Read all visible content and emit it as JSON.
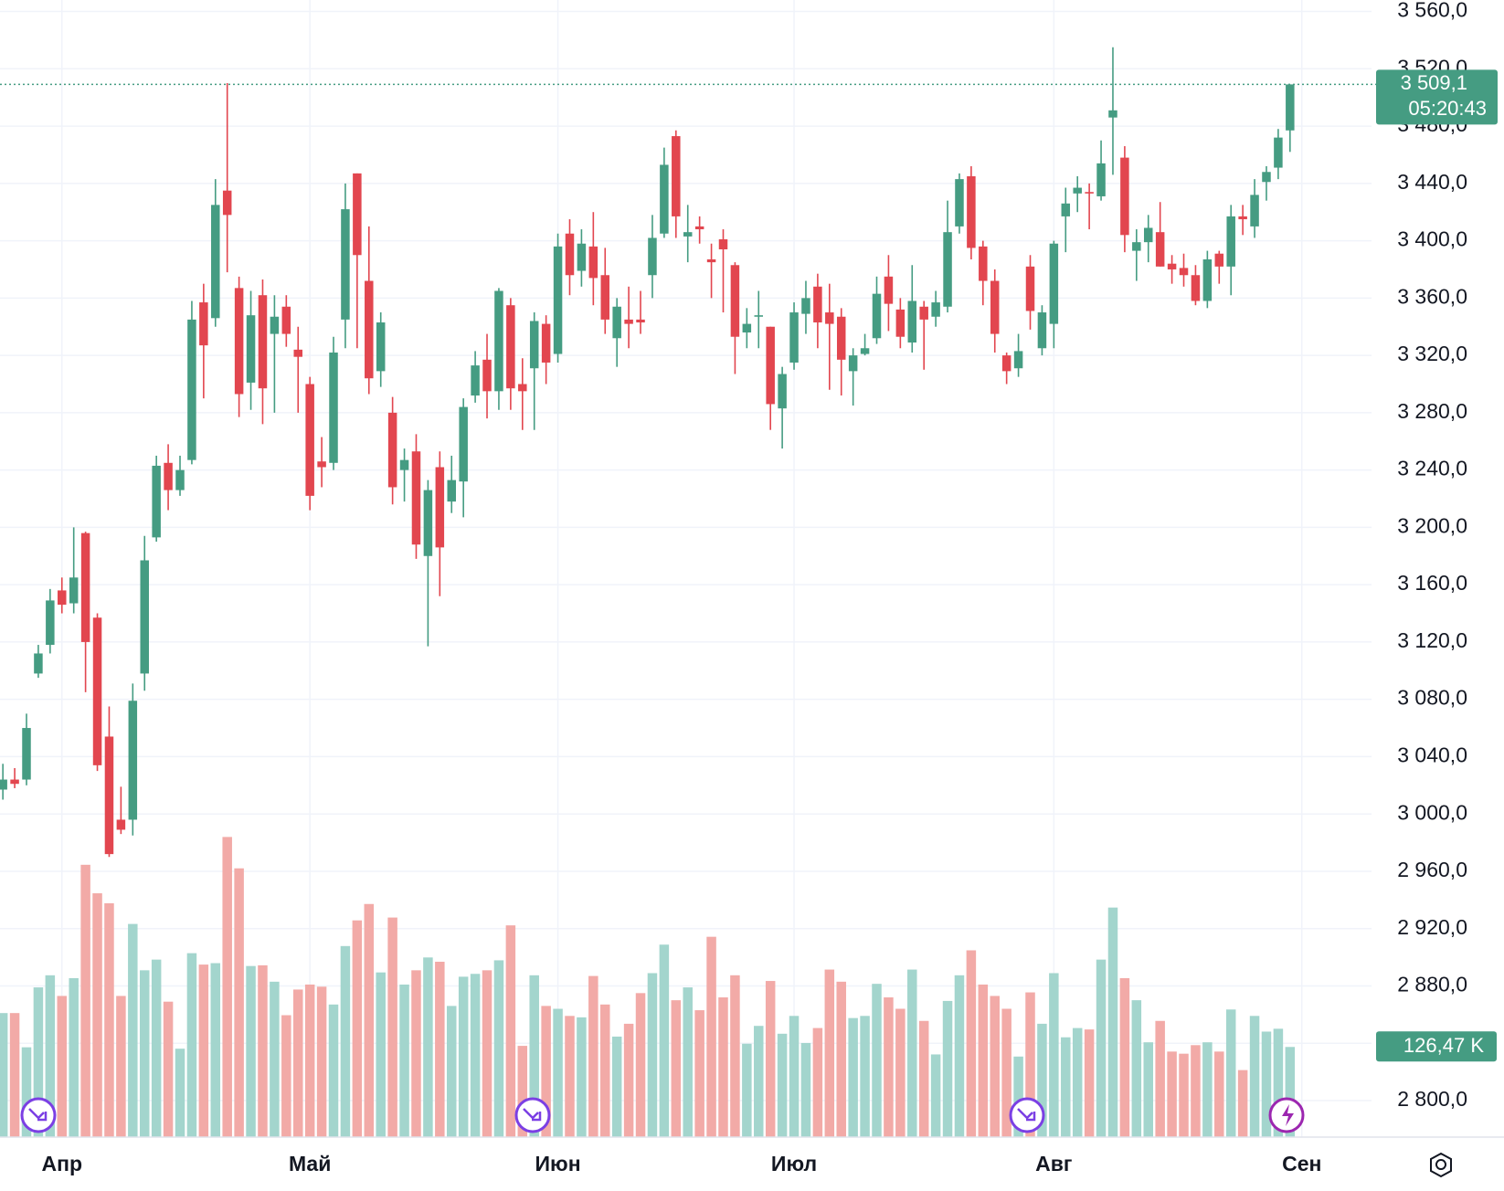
{
  "chart_data": {
    "type": "candlestick",
    "open": [
      3017,
      3024,
      3024,
      3098,
      3118,
      3156,
      3147,
      3196,
      3137,
      3054,
      2996,
      2996,
      3098,
      3193,
      3245,
      3226,
      3247,
      3357,
      3346,
      3435,
      3367,
      3301,
      3362,
      3335,
      3354,
      3324,
      3300,
      3246,
      3245,
      3345,
      3447,
      3372,
      3309,
      3280,
      3240,
      3253,
      3180,
      3242,
      3218,
      3232,
      3292,
      3317,
      3295,
      3355,
      3300,
      3311,
      3342,
      3321,
      3405,
      3379,
      3396,
      3376,
      3332,
      3345,
      3345,
      3376,
      3405,
      3473,
      3403,
      3410,
      3387,
      3401,
      3383,
      3336,
      3347,
      3340,
      3283,
      3315,
      3349,
      3368,
      3350,
      3347,
      3309,
      3321,
      3332,
      3375,
      3352,
      3329,
      3354,
      3347,
      3354,
      3410,
      3445,
      3396,
      3372,
      3320,
      3311,
      3382,
      3325,
      3342,
      3417,
      3433,
      3434,
      3431,
      3486,
      3458,
      3393,
      3399,
      3406,
      3384,
      3381,
      3376,
      3358,
      3391,
      3382,
      3417,
      3410,
      3441,
      3451,
      3477
    ],
    "high": [
      3035,
      3032,
      3070,
      3118,
      3157,
      3165,
      3200,
      3197,
      3140,
      3075,
      3019,
      3091,
      3194,
      3250,
      3258,
      3250,
      3358,
      3370,
      3443,
      3510,
      3375,
      3365,
      3373,
      3362,
      3362,
      3340,
      3305,
      3263,
      3333,
      3440,
      3447,
      3410,
      3350,
      3291,
      3255,
      3265,
      3233,
      3253,
      3250,
      3290,
      3323,
      3335,
      3367,
      3360,
      3318,
      3350,
      3348,
      3405,
      3415,
      3408,
      3420,
      3395,
      3360,
      3368,
      3365,
      3418,
      3465,
      3477,
      3425,
      3417,
      3398,
      3408,
      3385,
      3353,
      3365,
      3340,
      3312,
      3357,
      3372,
      3377,
      3370,
      3353,
      3325,
      3335,
      3375,
      3390,
      3360,
      3383,
      3358,
      3365,
      3428,
      3447,
      3452,
      3400,
      3380,
      3322,
      3335,
      3390,
      3355,
      3400,
      3437,
      3445,
      3440,
      3470,
      3535,
      3466,
      3408,
      3418,
      3427,
      3390,
      3391,
      3383,
      3393,
      3393,
      3425,
      3425,
      3443,
      3452,
      3478,
      3509.1
    ],
    "low": [
      3010,
      3018,
      3020,
      3095,
      3112,
      3140,
      3140,
      3085,
      3030,
      2970,
      2986,
      2985,
      3086,
      3190,
      3212,
      3222,
      3244,
      3290,
      3340,
      3378,
      3277,
      3282,
      3272,
      3280,
      3326,
      3280,
      3212,
      3228,
      3240,
      3325,
      3325,
      3293,
      3298,
      3216,
      3218,
      3178,
      3117,
      3152,
      3210,
      3207,
      3287,
      3276,
      3282,
      3282,
      3268,
      3268,
      3300,
      3315,
      3362,
      3368,
      3355,
      3335,
      3312,
      3325,
      3335,
      3360,
      3402,
      3402,
      3385,
      3398,
      3360,
      3350,
      3307,
      3325,
      3325,
      3268,
      3255,
      3310,
      3335,
      3325,
      3296,
      3292,
      3285,
      3320,
      3328,
      3337,
      3325,
      3322,
      3310,
      3340,
      3350,
      3405,
      3387,
      3355,
      3322,
      3300,
      3305,
      3338,
      3320,
      3325,
      3392,
      3420,
      3408,
      3428,
      3446,
      3392,
      3372,
      3385,
      3382,
      3370,
      3368,
      3355,
      3353,
      3370,
      3362,
      3404,
      3402,
      3428,
      3443,
      3462
    ],
    "close": [
      3024,
      3021,
      3060,
      3112,
      3149,
      3146,
      3165,
      3120,
      3034,
      2972,
      2989,
      3079,
      3177,
      3243,
      3226,
      3240,
      3345,
      3327,
      3425,
      3418,
      3293,
      3348,
      3297,
      3347,
      3335,
      3319,
      3222,
      3242,
      3322,
      3422,
      3390,
      3304,
      3343,
      3228,
      3247,
      3188,
      3226,
      3186,
      3233,
      3284,
      3313,
      3295,
      3365,
      3297,
      3295,
      3344,
      3315,
      3396,
      3376,
      3398,
      3374,
      3345,
      3354,
      3342,
      3343,
      3402,
      3453,
      3417,
      3406,
      3408,
      3385,
      3394,
      3333,
      3342,
      3348,
      3286,
      3307,
      3350,
      3360,
      3343,
      3342,
      3317,
      3320,
      3325,
      3363,
      3356,
      3333,
      3358,
      3345,
      3357,
      3406,
      3443,
      3395,
      3372,
      3335,
      3309,
      3323,
      3351,
      3350,
      3398,
      3426,
      3437,
      3433,
      3454,
      3491,
      3404,
      3399,
      3409,
      3382,
      3380,
      3376,
      3358,
      3387,
      3382,
      3417,
      3415,
      3432,
      3448,
      3472,
      3509.1
    ],
    "volume": {
      "values": [
        174,
        174,
        126,
        210,
        227,
        198,
        223,
        382,
        342,
        328,
        198,
        299,
        234,
        249,
        190,
        124,
        258,
        242,
        244,
        421,
        377,
        240,
        241,
        218,
        171,
        207,
        214,
        211,
        186,
        268,
        304,
        327,
        231,
        308,
        214,
        234,
        252,
        246,
        184,
        225,
        229,
        234,
        248,
        297,
        128,
        227,
        184,
        180,
        170,
        168,
        226,
        186,
        141,
        159,
        202,
        230,
        270,
        192,
        210,
        178,
        281,
        196,
        227,
        131,
        156,
        219,
        145,
        170,
        132,
        153,
        235,
        218,
        167,
        170,
        215,
        196,
        180,
        235,
        163,
        116,
        191,
        227,
        262,
        214,
        198,
        180,
        113,
        203,
        159,
        230,
        140,
        153,
        151,
        249,
        322,
        223,
        192,
        133,
        163,
        120,
        117,
        129,
        133,
        120,
        179,
        94,
        170,
        148,
        152,
        126.47
      ],
      "last_label": "126,47 K",
      "vlim": [
        0,
        1595
      ],
      "up_color": "#a3d5cd",
      "down_color": "#f2aaa7"
    },
    "up_color": "#459c82",
    "down_color": "#e2464f",
    "last_price": {
      "value": 3509.1,
      "label": "3 509,1"
    },
    "countdown": "05:20:43",
    "xlim": [
      -0.244,
      115.9
    ],
    "xticks": [
      {
        "value": 5,
        "label": "Апр"
      },
      {
        "value": 26,
        "label": "Май"
      },
      {
        "value": 47,
        "label": "Июн"
      },
      {
        "value": 67,
        "label": "Июл"
      },
      {
        "value": 89,
        "label": "Авг"
      },
      {
        "value": 110,
        "label": "Сен"
      }
    ],
    "ylim": [
      2774.5,
      3568
    ],
    "yticks": [
      {
        "value": 2800,
        "label": "2 800,0"
      },
      {
        "value": 2840,
        "label": "2 840,0"
      },
      {
        "value": 2880,
        "label": "2 880,0"
      },
      {
        "value": 2920,
        "label": "2 920,0"
      },
      {
        "value": 2960,
        "label": "2 960,0"
      },
      {
        "value": 3000,
        "label": "3 000,0"
      },
      {
        "value": 3040,
        "label": "3 040,0"
      },
      {
        "value": 3080,
        "label": "3 080,0"
      },
      {
        "value": 3120,
        "label": "3 120,0"
      },
      {
        "value": 3160,
        "label": "3 160,0"
      },
      {
        "value": 3200,
        "label": "3 200,0"
      },
      {
        "value": 3240,
        "label": "3 240,0"
      },
      {
        "value": 3280,
        "label": "3 280,0"
      },
      {
        "value": 3320,
        "label": "3 320,0"
      },
      {
        "value": 3360,
        "label": "3 360,0"
      },
      {
        "value": 3400,
        "label": "3 400,0"
      },
      {
        "value": 3440,
        "label": "3 440,0"
      },
      {
        "value": 3480,
        "label": "3 480,0"
      },
      {
        "value": 3520,
        "label": "3 520,0"
      },
      {
        "value": 3560,
        "label": "3 560,0"
      }
    ],
    "grid": true
  }
}
